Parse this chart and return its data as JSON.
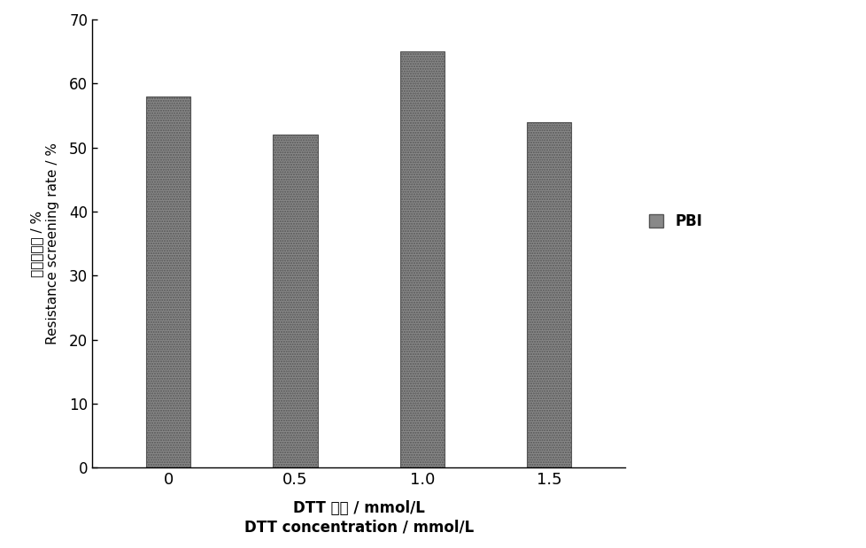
{
  "categories": [
    "0",
    "0.5",
    "1.0",
    "1.5"
  ],
  "values": [
    58,
    52,
    65,
    54
  ],
  "bar_color": "#888888",
  "bar_width": 0.35,
  "ylim": [
    0,
    70
  ],
  "yticks": [
    0,
    10,
    20,
    30,
    40,
    50,
    60,
    70
  ],
  "ylabel_chinese": "抗性筛选率 / %",
  "ylabel_english": "Resistance screening rate / %",
  "xlabel_chinese": "DTT 浓度 / mmol/L",
  "xlabel_english": "DTT concentration / mmol/L",
  "legend_label": "PBI",
  "background_color": "#ffffff",
  "figure_width": 9.79,
  "figure_height": 6.19,
  "dpi": 100
}
